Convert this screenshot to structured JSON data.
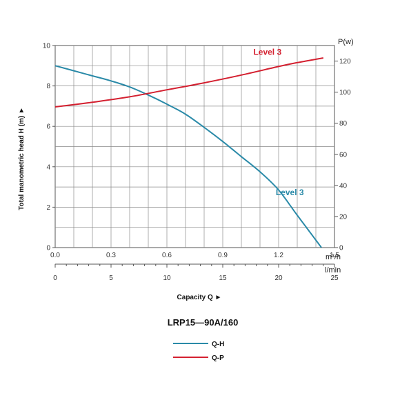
{
  "chart_data": {
    "type": "line",
    "title": "LRP15—90A/160",
    "xlabel": "Capacity Q ►",
    "ylabel": "Total manometric head H (m) ►",
    "y2label": "P(w)",
    "x_unit_primary": "m³/h",
    "x_unit_secondary": "l/min",
    "xlim": [
      0,
      1.5
    ],
    "ylim": [
      0,
      10
    ],
    "y2lim": [
      0,
      130
    ],
    "x_ticks": [
      "0.0",
      "0.3",
      "0.6",
      "0.9",
      "1.2",
      "1.5"
    ],
    "x_tick_values": [
      0,
      0.3,
      0.6,
      0.9,
      1.2,
      1.5
    ],
    "x2_ticks": [
      "0",
      "5",
      "10",
      "15",
      "20",
      "25"
    ],
    "x2_tick_values": [
      0,
      5,
      10,
      15,
      20,
      25
    ],
    "y_ticks": [
      "0",
      "2",
      "4",
      "6",
      "8",
      "10"
    ],
    "y_tick_values": [
      0,
      2,
      4,
      6,
      8,
      10
    ],
    "y2_ticks": [
      "0",
      "20",
      "40",
      "60",
      "80",
      "100",
      "120"
    ],
    "y2_tick_values": [
      0,
      20,
      40,
      60,
      80,
      100,
      120
    ],
    "grid": true,
    "legend_position": "bottom",
    "series": [
      {
        "name": "Q-H",
        "label": "Level 3",
        "axis": "left",
        "color": "#2a8aa8",
        "x": [
          0,
          0.1,
          0.2,
          0.3,
          0.4,
          0.5,
          0.6,
          0.7,
          0.8,
          0.9,
          1.0,
          1.1,
          1.2,
          1.3,
          1.43
        ],
        "y": [
          9.0,
          8.75,
          8.5,
          8.25,
          7.95,
          7.55,
          7.1,
          6.6,
          5.95,
          5.25,
          4.5,
          3.75,
          2.85,
          1.6,
          0
        ]
      },
      {
        "name": "Q-P",
        "label": "Level 3",
        "axis": "right",
        "color": "#d42030",
        "x": [
          0,
          0.2,
          0.4,
          0.6,
          0.8,
          1.0,
          1.2,
          1.3,
          1.44
        ],
        "y": [
          90.5,
          93.5,
          97,
          101.5,
          106,
          111,
          116.5,
          119,
          122
        ]
      }
    ]
  }
}
